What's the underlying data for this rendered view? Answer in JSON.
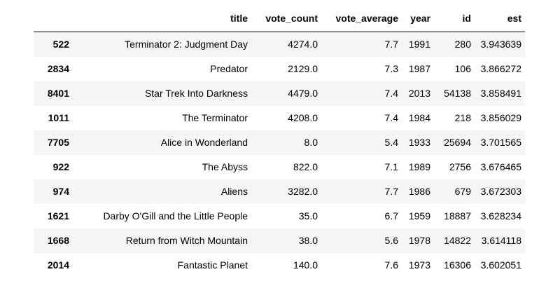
{
  "dataframe": {
    "columns": [
      "",
      "title",
      "vote_count",
      "vote_average",
      "year",
      "id",
      "est"
    ],
    "rows": [
      {
        "index": "522",
        "title": "Terminator 2: Judgment Day",
        "vote_count": "4274.0",
        "vote_average": "7.7",
        "year": "1991",
        "id": "280",
        "est": "3.943639"
      },
      {
        "index": "2834",
        "title": "Predator",
        "vote_count": "2129.0",
        "vote_average": "7.3",
        "year": "1987",
        "id": "106",
        "est": "3.866272"
      },
      {
        "index": "8401",
        "title": "Star Trek Into Darkness",
        "vote_count": "4479.0",
        "vote_average": "7.4",
        "year": "2013",
        "id": "54138",
        "est": "3.858491"
      },
      {
        "index": "1011",
        "title": "The Terminator",
        "vote_count": "4208.0",
        "vote_average": "7.4",
        "year": "1984",
        "id": "218",
        "est": "3.856029"
      },
      {
        "index": "7705",
        "title": "Alice in Wonderland",
        "vote_count": "8.0",
        "vote_average": "5.4",
        "year": "1933",
        "id": "25694",
        "est": "3.701565"
      },
      {
        "index": "922",
        "title": "The Abyss",
        "vote_count": "822.0",
        "vote_average": "7.1",
        "year": "1989",
        "id": "2756",
        "est": "3.676465"
      },
      {
        "index": "974",
        "title": "Aliens",
        "vote_count": "3282.0",
        "vote_average": "7.7",
        "year": "1986",
        "id": "679",
        "est": "3.672303"
      },
      {
        "index": "1621",
        "title": "Darby O'Gill and the Little People",
        "vote_count": "35.0",
        "vote_average": "6.7",
        "year": "1959",
        "id": "18887",
        "est": "3.628234"
      },
      {
        "index": "1668",
        "title": "Return from Witch Mountain",
        "vote_count": "38.0",
        "vote_average": "5.6",
        "year": "1978",
        "id": "14822",
        "est": "3.614118"
      },
      {
        "index": "2014",
        "title": "Fantastic Planet",
        "vote_count": "140.0",
        "vote_average": "7.6",
        "year": "1973",
        "id": "16306",
        "est": "3.602051"
      }
    ]
  },
  "colors": {
    "row_stripe": "#f5f5f5",
    "row_plain": "#ffffff",
    "text": "#000000",
    "header_rule": "#000000"
  }
}
